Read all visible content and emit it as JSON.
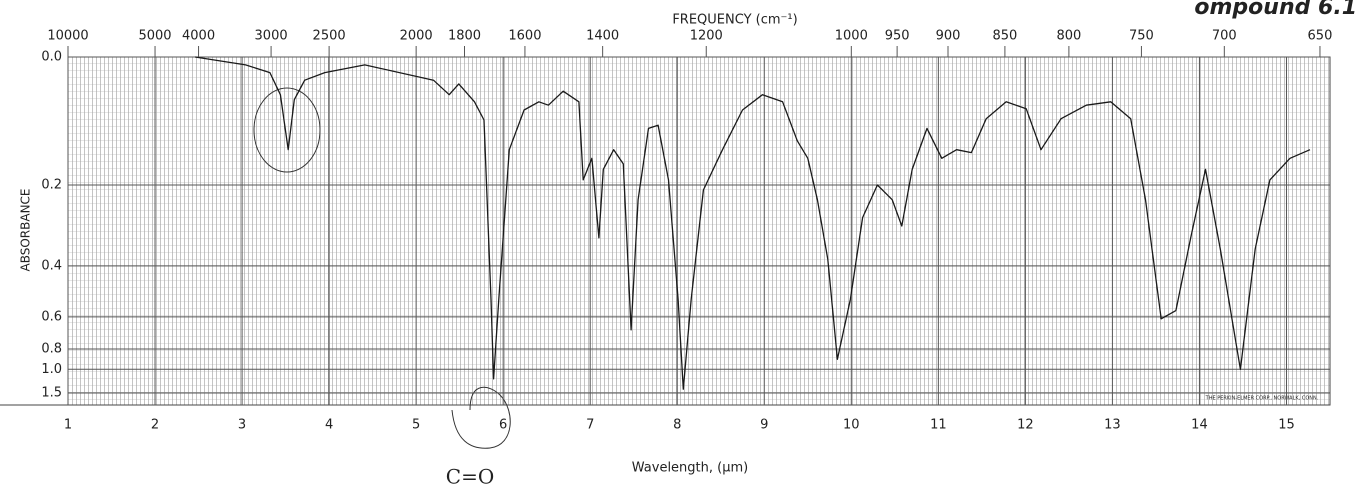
{
  "chart_data": {
    "type": "line",
    "title": "FREQUENCY (cm⁻¹)",
    "x_label": "Wavelength, (μm)",
    "y_label": "ABSORBANCE",
    "corner_label": "ompound 6.1",
    "annotation": "C=O",
    "footer": "THE PERKIN-ELMER CORP., NORWALK, CONN.",
    "color": "#1a1a1a",
    "yscale": "absorbance",
    "xlim": [
      1,
      15.5
    ],
    "xticks": [
      1,
      2,
      3,
      4,
      5,
      6,
      7,
      8,
      9,
      10,
      11,
      12,
      13,
      14,
      15
    ],
    "x2ticks": [
      10000,
      5000,
      4000,
      3000,
      2500,
      2000,
      1800,
      1600,
      1400,
      1200,
      1000,
      950,
      900,
      850,
      800,
      750,
      700,
      650
    ],
    "ylim": [
      0,
      1.5
    ],
    "yticks": [
      {
        "value": 0,
        "label": "0.0"
      },
      0.2,
      0.4,
      0.6,
      0.8,
      {
        "value": 1,
        "label": "1.0"
      },
      1.5
    ],
    "x": [
      2.46,
      3.04,
      3.32,
      3.44,
      3.53,
      3.6,
      3.72,
      3.95,
      4.41,
      5.2,
      5.38,
      5.49,
      5.67,
      5.78,
      5.86,
      5.89,
      5.95,
      6.07,
      6.24,
      6.41,
      6.52,
      6.69,
      6.87,
      6.92,
      7.02,
      7.1,
      7.15,
      7.27,
      7.38,
      7.47,
      7.55,
      7.67,
      7.78,
      7.9,
      8.01,
      8.07,
      8.16,
      8.3,
      8.52,
      8.75,
      8.98,
      9.21,
      9.38,
      9.5,
      9.61,
      9.73,
      9.84,
      9.99,
      10.13,
      10.3,
      10.47,
      10.58,
      10.7,
      10.87,
      11.04,
      11.21,
      11.38,
      11.55,
      11.78,
      12.01,
      12.18,
      12.41,
      12.7,
      12.98,
      13.21,
      13.38,
      13.56,
      13.73,
      13.9,
      14.07,
      14.24,
      14.47,
      14.64,
      14.81,
      15.04,
      15.27
    ],
    "values": [
      0,
      0.01,
      0.02,
      0.05,
      0.135,
      0.057,
      0.03,
      0.02,
      0.01,
      0.03,
      0.05,
      0.035,
      0.06,
      0.087,
      0.52,
      1.14,
      0.52,
      0.135,
      0.072,
      0.06,
      0.065,
      0.045,
      0.06,
      0.19,
      0.15,
      0.32,
      0.17,
      0.135,
      0.16,
      0.67,
      0.23,
      0.1,
      0.095,
      0.19,
      0.52,
      1.37,
      0.52,
      0.21,
      0.135,
      0.072,
      0.05,
      0.06,
      0.12,
      0.15,
      0.23,
      0.38,
      0.89,
      0.52,
      0.27,
      0.2,
      0.23,
      0.29,
      0.17,
      0.1,
      0.15,
      0.135,
      0.14,
      0.085,
      0.06,
      0.07,
      0.135,
      0.085,
      0.065,
      0.06,
      0.085,
      0.23,
      0.61,
      0.57,
      0.32,
      0.17,
      0.35,
      1.0,
      0.35,
      0.19,
      0.15,
      0.135
    ]
  }
}
